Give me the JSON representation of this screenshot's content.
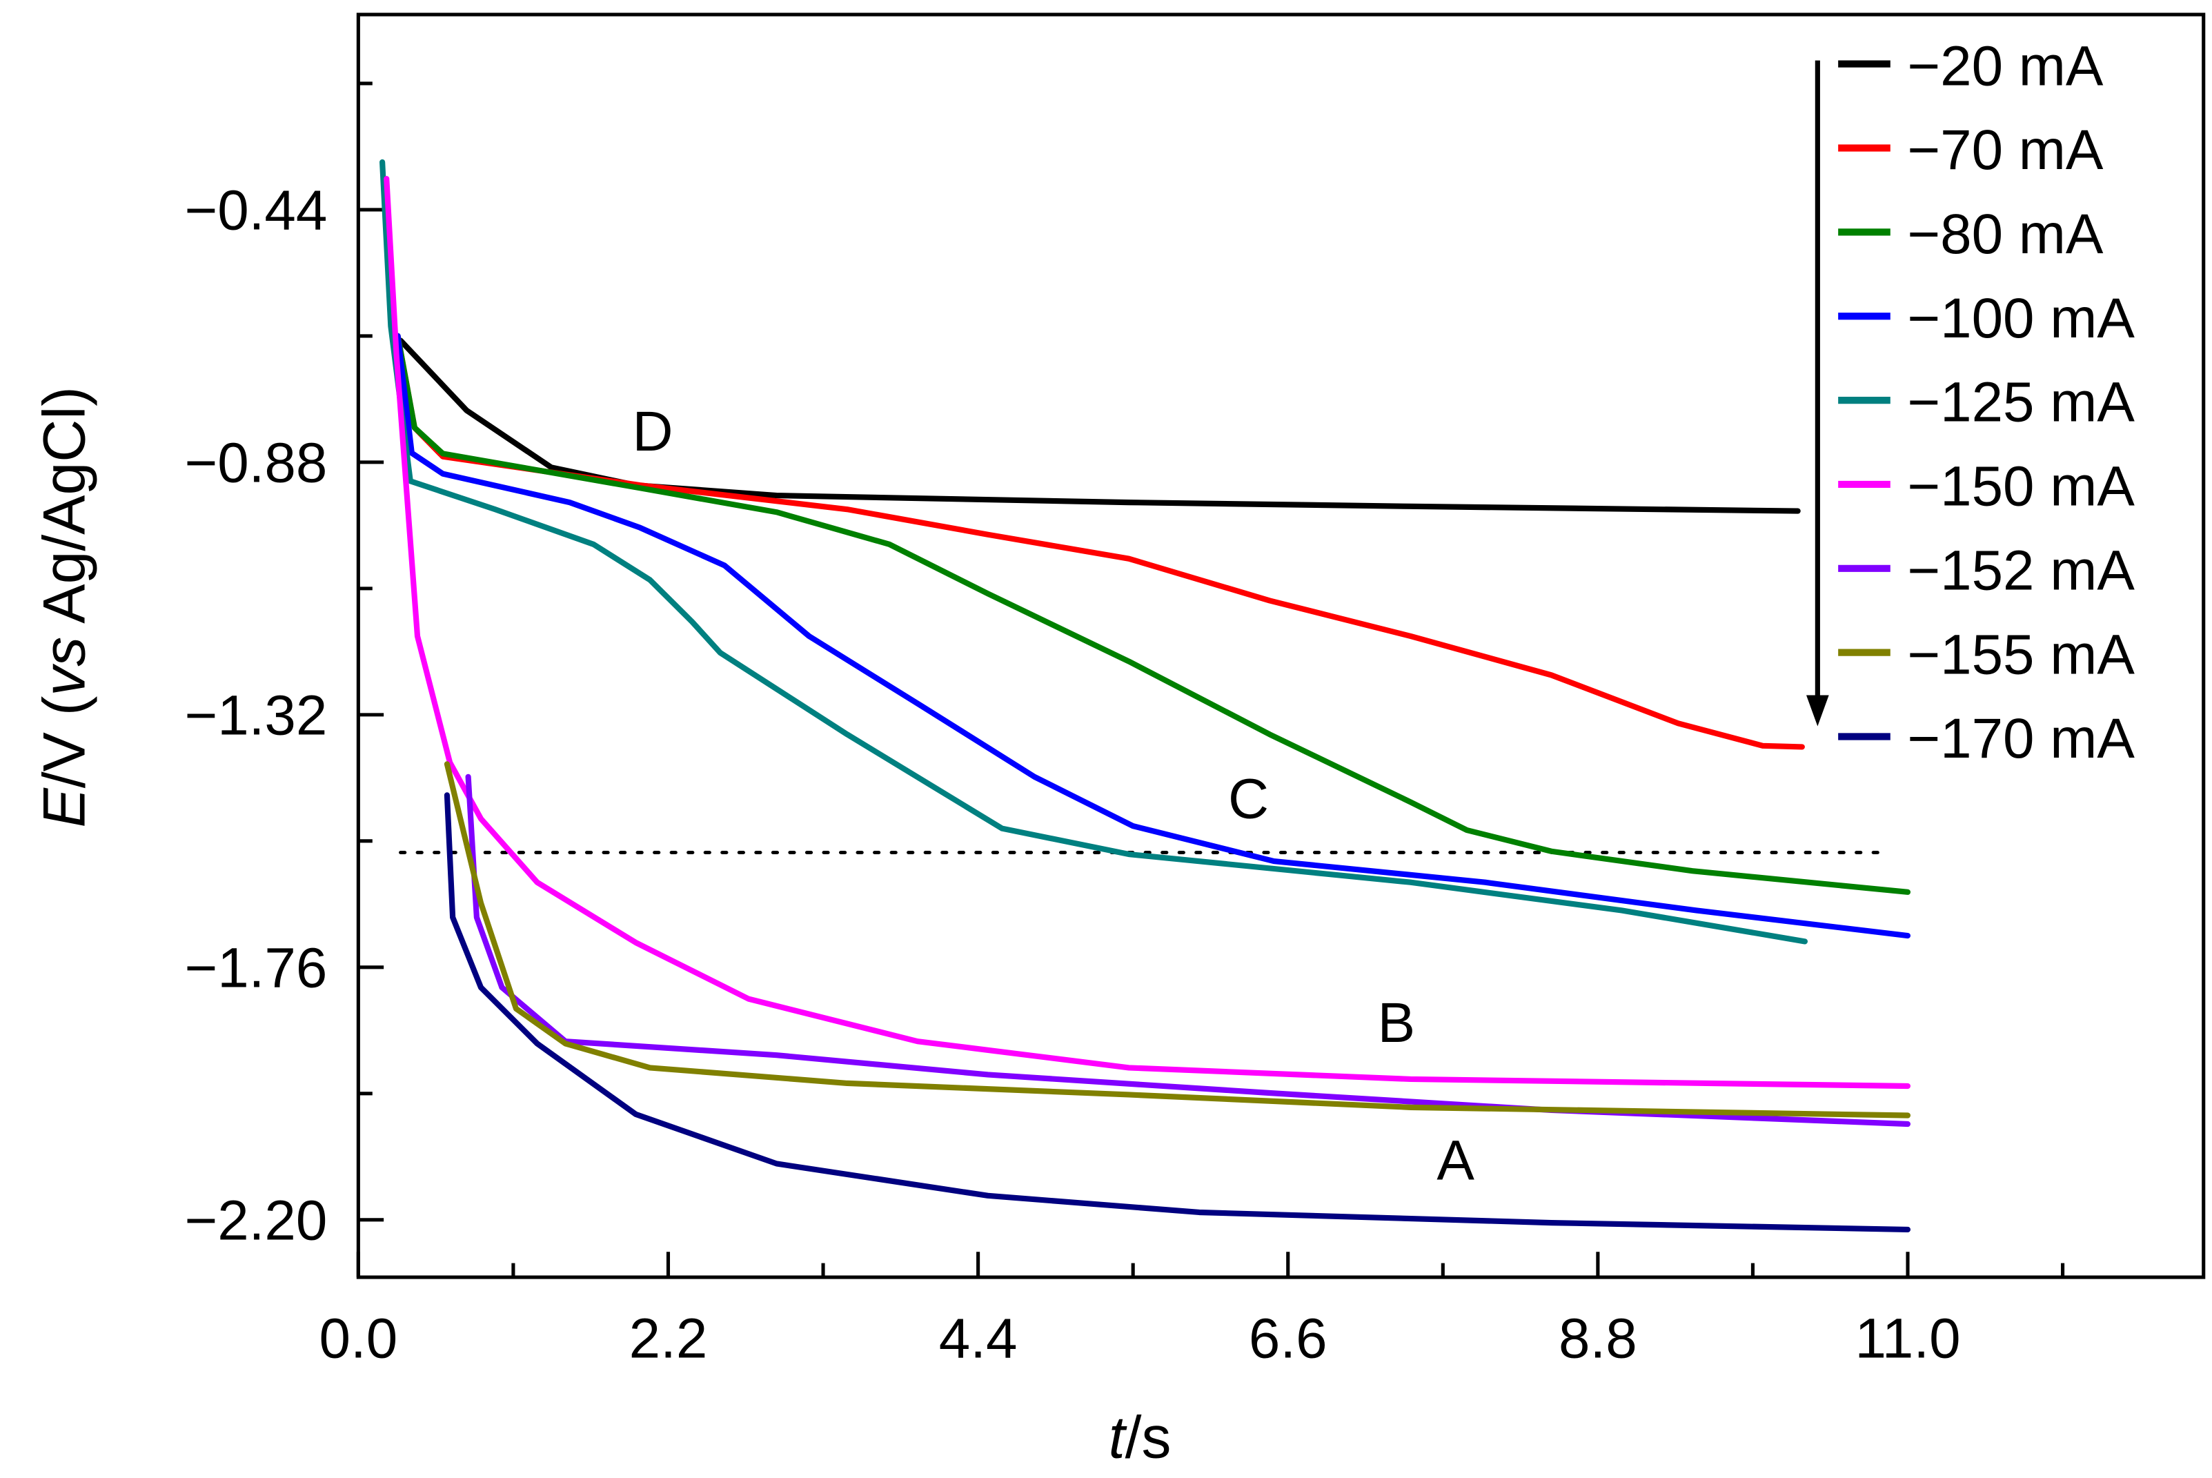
{
  "chart_data": {
    "type": "line",
    "title": "",
    "xlabel": {
      "italic": "t",
      "rest": "/s"
    },
    "ylabel": {
      "italic1": "E",
      "mid": "/V (",
      "italic2": "vs",
      "rest": " Ag/AgCl)"
    },
    "xlim": [
      0,
      13.1
    ],
    "ylim": [
      -2.3,
      -0.1
    ],
    "xticks": [
      0.0,
      2.2,
      4.4,
      6.6,
      8.8,
      11.0
    ],
    "xtick_labels": [
      "0.0",
      "2.2",
      "4.4",
      "6.6",
      "8.8",
      "11.0"
    ],
    "xminor": [
      1.1,
      3.3,
      5.5,
      7.7,
      9.9,
      12.1
    ],
    "yticks": [
      -0.44,
      -0.88,
      -1.32,
      -1.76,
      -2.2
    ],
    "ytick_labels": [
      "−0.44",
      "−0.88",
      "−1.32",
      "−1.76",
      "−2.20"
    ],
    "yminor": [
      -0.22,
      -0.66,
      -1.1,
      -1.54,
      -1.98
    ],
    "grid": false,
    "legend_placement": "top-right",
    "series": [
      {
        "name": "−20  mA",
        "color": "#000000",
        "points": [
          [
            0.3,
            -0.668
          ],
          [
            0.77,
            -0.79
          ],
          [
            1.37,
            -0.889
          ],
          [
            1.97,
            -0.92
          ],
          [
            2.97,
            -0.938
          ],
          [
            5.47,
            -0.95
          ],
          [
            7.47,
            -0.957
          ],
          [
            10.22,
            -0.965
          ]
        ]
      },
      {
        "name": "−70  mA",
        "color": "#ff0000",
        "points": [
          [
            0.28,
            -0.66
          ],
          [
            0.4,
            -0.82
          ],
          [
            0.6,
            -0.87
          ],
          [
            2.0,
            -0.92
          ],
          [
            3.47,
            -0.962
          ],
          [
            4.47,
            -1.006
          ],
          [
            5.47,
            -1.048
          ],
          [
            6.47,
            -1.121
          ],
          [
            7.47,
            -1.183
          ],
          [
            8.47,
            -1.251
          ],
          [
            9.37,
            -1.335
          ],
          [
            9.97,
            -1.374
          ],
          [
            10.25,
            -1.376
          ]
        ]
      },
      {
        "name": "−80  mA",
        "color": "#008000",
        "points": [
          [
            0.28,
            -0.66
          ],
          [
            0.4,
            -0.82
          ],
          [
            0.6,
            -0.865
          ],
          [
            2.0,
            -0.925
          ],
          [
            2.97,
            -0.967
          ],
          [
            3.77,
            -1.023
          ],
          [
            4.47,
            -1.109
          ],
          [
            5.47,
            -1.227
          ],
          [
            6.47,
            -1.354
          ],
          [
            7.47,
            -1.472
          ],
          [
            7.87,
            -1.521
          ],
          [
            8.47,
            -1.558
          ],
          [
            9.47,
            -1.592
          ],
          [
            11.0,
            -1.629
          ]
        ]
      },
      {
        "name": "−100 mA",
        "color": "#0000ff",
        "points": [
          [
            0.28,
            -0.66
          ],
          [
            0.38,
            -0.864
          ],
          [
            0.6,
            -0.9
          ],
          [
            1.5,
            -0.95
          ],
          [
            2.0,
            -0.994
          ],
          [
            2.6,
            -1.06
          ],
          [
            3.2,
            -1.183
          ],
          [
            4.0,
            -1.305
          ],
          [
            4.8,
            -1.428
          ],
          [
            5.5,
            -1.514
          ],
          [
            6.5,
            -1.575
          ],
          [
            8.0,
            -1.612
          ],
          [
            9.5,
            -1.661
          ],
          [
            11.0,
            -1.705
          ]
        ]
      },
      {
        "name": "−125 mA",
        "color": "#008080",
        "points": [
          [
            0.17,
            -0.357
          ],
          [
            0.23,
            -0.643
          ],
          [
            0.37,
            -0.913
          ],
          [
            0.97,
            -0.962
          ],
          [
            1.67,
            -1.023
          ],
          [
            2.07,
            -1.085
          ],
          [
            2.37,
            -1.158
          ],
          [
            2.57,
            -1.212
          ],
          [
            3.47,
            -1.354
          ],
          [
            4.57,
            -1.518
          ],
          [
            5.47,
            -1.563
          ],
          [
            7.47,
            -1.612
          ],
          [
            8.97,
            -1.661
          ],
          [
            10.27,
            -1.715
          ]
        ]
      },
      {
        "name": "−150 mA",
        "color": "#ff00ff",
        "points": [
          [
            0.2,
            -0.386
          ],
          [
            0.27,
            -0.692
          ],
          [
            0.42,
            -1.183
          ],
          [
            0.65,
            -1.403
          ],
          [
            0.87,
            -1.501
          ],
          [
            1.27,
            -1.612
          ],
          [
            1.97,
            -1.717
          ],
          [
            2.77,
            -1.815
          ],
          [
            3.97,
            -1.889
          ],
          [
            5.47,
            -1.935
          ],
          [
            7.47,
            -1.955
          ],
          [
            11.0,
            -1.967
          ]
        ]
      },
      {
        "name": "−152 mA",
        "color": "#8000ff",
        "points": [
          [
            0.78,
            -1.428
          ],
          [
            0.84,
            -1.673
          ],
          [
            1.02,
            -1.795
          ],
          [
            1.47,
            -1.889
          ],
          [
            2.97,
            -1.913
          ],
          [
            4.47,
            -1.947
          ],
          [
            6.47,
            -1.979
          ],
          [
            8.47,
            -2.009
          ],
          [
            11.0,
            -2.033
          ]
        ]
      },
      {
        "name": "−155 mA",
        "color": "#808000",
        "points": [
          [
            0.63,
            -1.406
          ],
          [
            0.87,
            -1.648
          ],
          [
            1.12,
            -1.832
          ],
          [
            1.47,
            -1.893
          ],
          [
            2.07,
            -1.935
          ],
          [
            3.47,
            -1.962
          ],
          [
            5.47,
            -1.982
          ],
          [
            7.47,
            -2.004
          ],
          [
            11.0,
            -2.018
          ]
        ]
      },
      {
        "name": "−170 mA",
        "color": "#000080",
        "points": [
          [
            0.63,
            -1.46
          ],
          [
            0.67,
            -1.673
          ],
          [
            0.87,
            -1.795
          ],
          [
            1.27,
            -1.893
          ],
          [
            1.97,
            -2.016
          ],
          [
            2.97,
            -2.102
          ],
          [
            4.47,
            -2.158
          ],
          [
            5.97,
            -2.187
          ],
          [
            8.47,
            -2.205
          ],
          [
            11.0,
            -2.217
          ]
        ]
      }
    ],
    "reference_line": {
      "style": "dotted",
      "y": -1.56,
      "x": [
        0.3,
        10.85
      ]
    },
    "annotations": [
      {
        "text": "D",
        "x": 2.09,
        "y": -0.86
      },
      {
        "text": "C",
        "x": 6.32,
        "y": -1.5
      },
      {
        "text": "B",
        "x": 7.37,
        "y": -1.89
      },
      {
        "text": "A",
        "x": 7.79,
        "y": -2.13
      }
    ],
    "arrow": {
      "direction": "down",
      "x": 10.36,
      "y_from": -0.18,
      "y_to": -1.34
    }
  }
}
